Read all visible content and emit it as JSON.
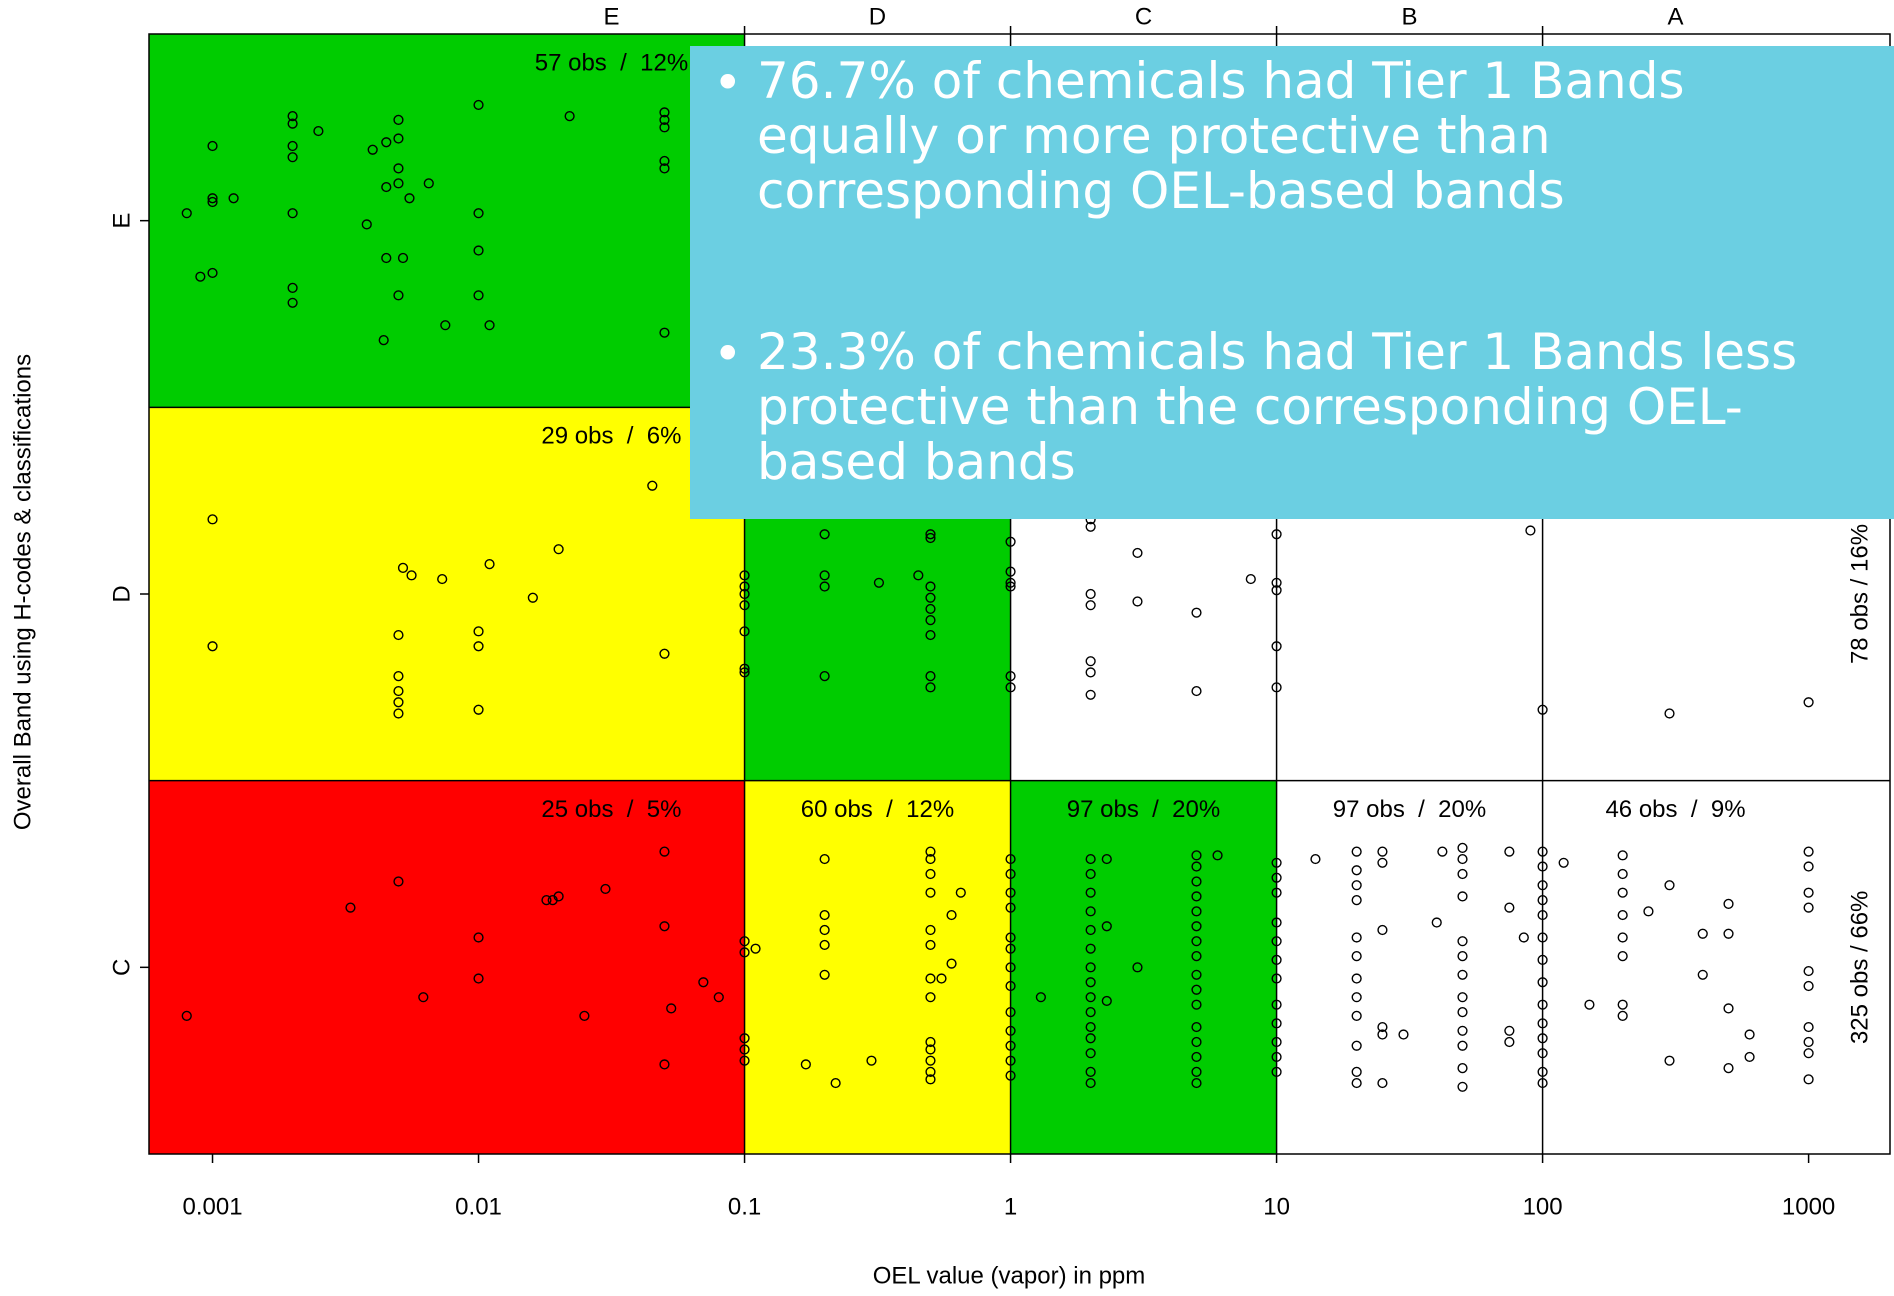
{
  "chart_data": {
    "type": "scatter",
    "xlabel": "OEL value (vapor) in ppm",
    "ylabel": "Overall Band using H-codes & classifications",
    "log_x": true,
    "xlim": [
      0.000577,
      2023
    ],
    "xticks": [
      0.001,
      0.01,
      0.1,
      1,
      10,
      100,
      1000
    ],
    "x2ticks": [
      {
        "value": 0.0316,
        "label": "E"
      },
      {
        "value": 0.316,
        "label": "D"
      },
      {
        "value": 3.16,
        "label": "C"
      },
      {
        "value": 31.6,
        "label": "B"
      },
      {
        "value": 316,
        "label": "A"
      }
    ],
    "ylim": [
      0,
      3
    ],
    "yticks": [
      {
        "value": 0.5,
        "label": "C"
      },
      {
        "value": 1.5,
        "label": "D"
      },
      {
        "value": 2.5,
        "label": "E"
      }
    ],
    "column_edges": [
      0.1,
      1,
      10,
      100
    ],
    "row_edges": [
      1,
      2
    ],
    "cell_colors": [
      [
        "#ff0000",
        "#ffff00",
        "#00cc00",
        "#ffffff",
        "#ffffff"
      ],
      [
        "#ffff00",
        "#00cc00",
        "#ffffff",
        "#ffffff",
        "#ffffff"
      ],
      [
        "#00cc00",
        "#ffffff",
        "#ffffff",
        "#ffffff",
        "#ffffff"
      ]
    ],
    "cell_labels": [
      [
        "25 obs  /  5%",
        "60 obs  /  12%",
        "97 obs  /  20%",
        "97 obs  /  20%",
        "46 obs  /  9%"
      ],
      [
        "29 obs  /  6%",
        null,
        null,
        null,
        null
      ],
      [
        "57 obs  /  12%",
        null,
        null,
        null,
        null
      ]
    ],
    "row_totals": [
      "325 obs / 66%",
      "78 obs / 16%",
      null
    ],
    "label_color": "#2a2ad8",
    "marker_color": "#000000",
    "x": [
      0.001,
      0.001,
      0.001,
      0.0012,
      0.0008,
      0.0009,
      0.001,
      0.002,
      0.002,
      0.002,
      0.002,
      0.002,
      0.002,
      0.002,
      0.0025,
      0.004,
      0.0045,
      0.005,
      0.005,
      0.005,
      0.005,
      0.0045,
      0.0055,
      0.0038,
      0.0045,
      0.0052,
      0.005,
      0.0044,
      0.0065,
      0.0075,
      0.01,
      0.01,
      0.01,
      0.01,
      0.011,
      0.022,
      0.05,
      0.05,
      0.05,
      0.05,
      0.05,
      0.05,
      0.001,
      0.001,
      0.0052,
      0.0056,
      0.0073,
      0.011,
      0.016,
      0.02,
      0.005,
      0.005,
      0.005,
      0.005,
      0.005,
      0.01,
      0.01,
      0.01,
      0.045,
      0.05,
      0.1,
      0.1,
      0.1,
      0.1,
      0.1,
      0.1,
      0.1,
      0.2,
      0.2,
      0.2,
      0.32,
      0.45,
      0.5,
      0.5,
      0.5,
      0.5,
      0.5,
      0.5,
      0.5,
      0.5,
      0.5,
      0.2,
      1,
      1,
      1,
      1,
      1,
      1,
      2,
      2,
      2,
      2,
      2,
      2,
      2,
      3,
      3,
      5,
      5,
      8,
      10,
      10,
      10,
      10,
      10,
      90,
      100,
      300,
      1000,
      0.0008,
      0.0033,
      0.005,
      0.0062,
      0.01,
      0.01,
      0.018,
      0.019,
      0.02,
      0.025,
      0.03,
      0.05,
      0.05,
      0.05,
      0.053,
      0.07,
      0.08,
      0.1,
      0.1,
      0.1,
      0.1,
      0.1,
      0.11,
      0.2,
      0.2,
      0.2,
      0.2,
      0.2,
      0.17,
      0.22,
      0.3,
      0.5,
      0.5,
      0.5,
      0.5,
      0.5,
      0.5,
      0.5,
      0.5,
      0.5,
      0.5,
      0.5,
      0.5,
      0.5,
      0.55,
      0.6,
      0.6,
      0.65,
      1,
      1,
      1,
      1,
      1,
      1,
      1,
      1,
      1,
      1,
      1,
      1,
      1,
      1.3,
      2,
      2,
      2,
      2,
      2,
      2,
      2,
      2,
      2,
      2,
      2,
      2,
      2,
      2,
      2,
      2.3,
      2.3,
      2.3,
      3,
      5,
      5,
      5,
      5,
      5,
      5,
      5,
      5,
      5,
      5,
      5,
      5,
      5,
      5,
      5,
      5,
      6,
      10,
      10,
      10,
      10,
      10,
      10,
      10,
      10,
      10,
      10,
      10,
      10,
      14,
      20,
      20,
      20,
      20,
      20,
      20,
      20,
      20,
      20,
      20,
      20,
      20,
      25,
      25,
      25,
      25,
      25,
      25,
      30,
      40,
      42,
      50,
      50,
      50,
      50,
      50,
      50,
      50,
      50,
      50,
      50,
      50,
      50,
      50,
      75,
      75,
      75,
      75,
      85,
      100,
      100,
      100,
      100,
      100,
      100,
      100,
      100,
      100,
      100,
      100,
      100,
      100,
      100,
      120,
      150,
      200,
      200,
      200,
      200,
      200,
      200,
      200,
      200,
      250,
      300,
      300,
      400,
      400,
      500,
      500,
      500,
      500,
      600,
      600,
      1000,
      1000,
      1000,
      1000,
      1000,
      1000,
      1000,
      1000,
      1000,
      1000
    ],
    "values": [
      2.7,
      2.56,
      2.55,
      2.56,
      2.52,
      2.35,
      2.36,
      2.78,
      2.76,
      2.7,
      2.67,
      2.52,
      2.32,
      2.28,
      2.74,
      2.69,
      2.71,
      2.77,
      2.72,
      2.64,
      2.6,
      2.59,
      2.56,
      2.49,
      2.4,
      2.4,
      2.3,
      2.18,
      2.6,
      2.22,
      2.81,
      2.52,
      2.42,
      2.3,
      2.22,
      2.78,
      2.79,
      2.77,
      2.75,
      2.66,
      2.64,
      2.2,
      1.7,
      1.36,
      1.57,
      1.55,
      1.54,
      1.58,
      1.49,
      1.62,
      1.39,
      1.28,
      1.24,
      1.21,
      1.18,
      1.4,
      1.36,
      1.19,
      1.79,
      1.34,
      1.55,
      1.52,
      1.5,
      1.47,
      1.4,
      1.3,
      1.29,
      1.55,
      1.52,
      1.28,
      1.53,
      1.55,
      1.52,
      1.49,
      1.46,
      1.43,
      1.39,
      1.28,
      1.25,
      1.65,
      1.66,
      1.66,
      1.56,
      1.53,
      1.52,
      1.28,
      1.25,
      1.64,
      1.7,
      1.68,
      1.5,
      1.47,
      1.32,
      1.29,
      1.23,
      1.61,
      1.48,
      1.45,
      1.24,
      1.54,
      1.53,
      1.51,
      1.66,
      1.36,
      1.25,
      1.67,
      1.19,
      1.18,
      1.21,
      0.37,
      0.66,
      0.73,
      0.42,
      0.58,
      0.47,
      0.68,
      0.68,
      0.69,
      0.37,
      0.71,
      0.81,
      0.61,
      0.24,
      0.39,
      0.46,
      0.42,
      0.57,
      0.54,
      0.31,
      0.28,
      0.25,
      0.55,
      0.79,
      0.64,
      0.6,
      0.56,
      0.48,
      0.24,
      0.19,
      0.25,
      0.81,
      0.79,
      0.75,
      0.7,
      0.6,
      0.56,
      0.47,
      0.42,
      0.3,
      0.28,
      0.25,
      0.22,
      0.2,
      0.47,
      0.64,
      0.51,
      0.7,
      0.79,
      0.75,
      0.7,
      0.66,
      0.58,
      0.55,
      0.5,
      0.45,
      0.38,
      0.33,
      0.29,
      0.25,
      0.21,
      0.42,
      0.79,
      0.75,
      0.7,
      0.65,
      0.6,
      0.55,
      0.5,
      0.46,
      0.42,
      0.38,
      0.34,
      0.31,
      0.27,
      0.22,
      0.19,
      0.79,
      0.61,
      0.41,
      0.5,
      0.8,
      0.77,
      0.73,
      0.69,
      0.65,
      0.61,
      0.57,
      0.53,
      0.48,
      0.44,
      0.4,
      0.34,
      0.3,
      0.26,
      0.22,
      0.19,
      0.8,
      0.78,
      0.74,
      0.7,
      0.62,
      0.57,
      0.52,
      0.47,
      0.4,
      0.35,
      0.3,
      0.26,
      0.22,
      0.79,
      0.81,
      0.76,
      0.72,
      0.68,
      0.58,
      0.53,
      0.47,
      0.42,
      0.37,
      0.29,
      0.22,
      0.19,
      0.81,
      0.78,
      0.6,
      0.34,
      0.32,
      0.19,
      0.32,
      0.62,
      0.81,
      0.82,
      0.79,
      0.75,
      0.69,
      0.57,
      0.53,
      0.48,
      0.42,
      0.38,
      0.33,
      0.29,
      0.23,
      0.18,
      0.81,
      0.66,
      0.33,
      0.3,
      0.58,
      0.81,
      0.77,
      0.72,
      0.68,
      0.64,
      0.58,
      0.52,
      0.46,
      0.4,
      0.35,
      0.31,
      0.27,
      0.22,
      0.19,
      0.78,
      0.4,
      0.8,
      0.75,
      0.7,
      0.64,
      0.58,
      0.53,
      0.4,
      0.37,
      0.65,
      0.72,
      0.25,
      0.59,
      0.48,
      0.67,
      0.59,
      0.39,
      0.23,
      0.32,
      0.26,
      0.81,
      0.77,
      0.7,
      0.66,
      0.49,
      0.45,
      0.34,
      0.3,
      0.27,
      0.2
    ]
  },
  "callout": {
    "color": "#6bcfe2",
    "bullets": [
      [
        "76.7% of chemicals had Tier 1 Bands",
        "equally or more protective than",
        "corresponding OEL-based bands"
      ],
      [
        "23.3% of chemicals had Tier 1 Bands less",
        "protective than the corresponding OEL-",
        "based bands"
      ]
    ]
  }
}
